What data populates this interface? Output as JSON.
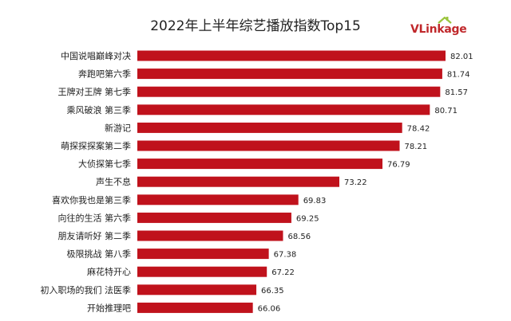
{
  "chart_data": {
    "type": "bar",
    "orientation": "horizontal",
    "title": "2022年上半年综艺播放指数Top15",
    "categories": [
      "中国说唱巅峰对决",
      "奔跑吧第六季",
      "王牌对王牌 第七季",
      "乘风破浪 第三季",
      "新游记",
      "萌探探探案第二季",
      "大侦探第七季",
      "声生不息",
      "喜欢你我也是第三季",
      "向往的生活 第六季",
      "朋友请听好 第二季",
      "极限挑战 第八季",
      "麻花特开心",
      "初入职场的我们 法医季",
      "开始推理吧"
    ],
    "values": [
      82.01,
      81.74,
      81.57,
      80.71,
      78.42,
      78.21,
      76.79,
      73.22,
      69.83,
      69.25,
      68.56,
      67.38,
      67.22,
      66.35,
      66.06
    ],
    "value_labels": [
      "82.01",
      "81.74",
      "81.57",
      "80.71",
      "78.42",
      "78.21",
      "76.79",
      "73.22",
      "69.83",
      "69.25",
      "68.56",
      "67.38",
      "67.22",
      "66.35",
      "66.06"
    ],
    "bar_color": "#c0121c",
    "grid": false,
    "legend": false
  },
  "logo": {
    "text": "VLinkage",
    "color": "#c0282b",
    "roof_color": "#9bc53d"
  }
}
